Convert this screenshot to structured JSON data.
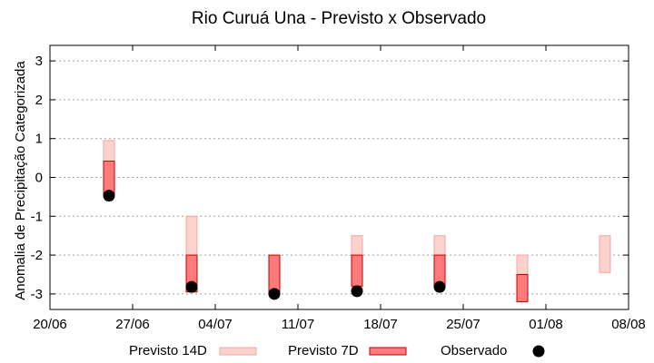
{
  "chart_data": {
    "type": "range-bar",
    "title": "Rio Curuá Una - Previsto x Observado",
    "xlabel": "",
    "ylabel": "Anomalia de Precipitação Categorizada",
    "x_ticks": [
      "20/06",
      "27/06",
      "04/07",
      "11/07",
      "18/07",
      "25/07",
      "01/08",
      "08/08"
    ],
    "y_ticks": [
      "-3",
      "-2",
      "-1",
      "0",
      "1",
      "2",
      "3"
    ],
    "xlim": [
      "2024-06-20",
      "2024-08-08"
    ],
    "ylim": [
      -3.4,
      3.4
    ],
    "grid": true,
    "legend_position": "bottom",
    "series": [
      {
        "name": "Previsto 14D",
        "color": "#f6a6a0",
        "fill": "#fbd2cd",
        "ranges": [
          {
            "x": "2024-06-25",
            "low": -0.45,
            "high": 0.95
          },
          {
            "x": "2024-07-02",
            "low": -2.8,
            "high": -1.0
          },
          {
            "x": "2024-07-16",
            "low": -2.95,
            "high": -1.5
          },
          {
            "x": "2024-07-23",
            "low": -2.8,
            "high": -1.5
          },
          {
            "x": "2024-07-30",
            "low": -3.1,
            "high": -2.0
          },
          {
            "x": "2024-08-06",
            "low": -2.45,
            "high": -1.5
          }
        ]
      },
      {
        "name": "Previsto 7D",
        "color": "#c00000",
        "fill": "#ff7b7b",
        "ranges": [
          {
            "x": "2024-06-25",
            "low": -0.45,
            "high": 0.42
          },
          {
            "x": "2024-07-02",
            "low": -2.95,
            "high": -2.0
          },
          {
            "x": "2024-07-09",
            "low": -3.0,
            "high": -2.0
          },
          {
            "x": "2024-07-16",
            "low": -2.8,
            "high": -2.0
          },
          {
            "x": "2024-07-23",
            "low": -2.8,
            "high": -2.0
          },
          {
            "x": "2024-07-30",
            "low": -3.2,
            "high": -2.5
          }
        ]
      },
      {
        "name": "Observado",
        "color": "#000000",
        "points": [
          {
            "x": "2024-06-25",
            "y": -0.47
          },
          {
            "x": "2024-07-02",
            "y": -2.82
          },
          {
            "x": "2024-07-09",
            "y": -3.0
          },
          {
            "x": "2024-07-16",
            "y": -2.93
          },
          {
            "x": "2024-07-23",
            "y": -2.82
          }
        ]
      }
    ]
  }
}
